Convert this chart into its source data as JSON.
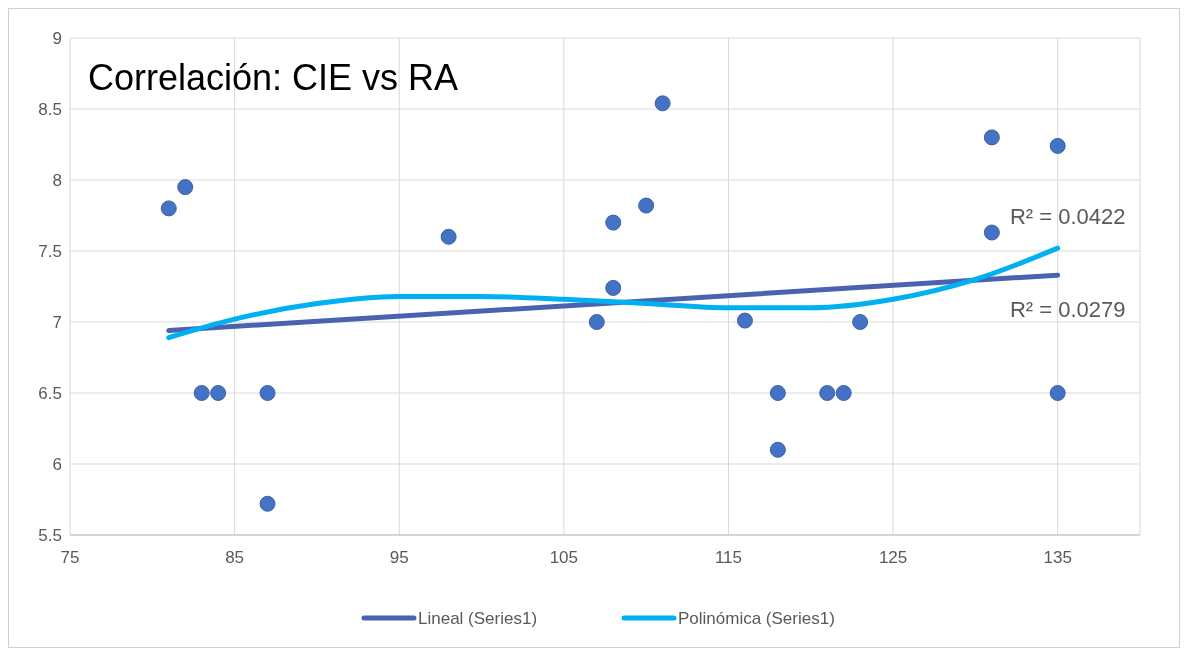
{
  "chart_data": {
    "type": "scatter",
    "title": "Correlación: CIE vs RA",
    "xlim": [
      75,
      140
    ],
    "ylim": [
      5.5,
      9
    ],
    "xticks": [
      75,
      85,
      95,
      105,
      115,
      125,
      135
    ],
    "yticks": [
      5.5,
      6,
      6.5,
      7,
      7.5,
      8,
      8.5,
      9
    ],
    "grid": true,
    "legend": "bottom",
    "marker": "circle",
    "series": [
      {
        "color": "#4472c4",
        "x": [
          81,
          82,
          83,
          84,
          87,
          87,
          98,
          107,
          108,
          108,
          110,
          111,
          116,
          118,
          118,
          121,
          122,
          123,
          131,
          131,
          135,
          135
        ],
        "values": [
          7.8,
          7.95,
          6.5,
          6.5,
          6.5,
          5.72,
          7.6,
          7.0,
          7.24,
          7.7,
          7.82,
          8.54,
          7.01,
          6.5,
          6.1,
          6.5,
          6.5,
          7.0,
          8.3,
          7.63,
          8.24,
          6.5
        ]
      },
      {
        "type": "line",
        "name": "Lineal (Series1)",
        "color": "#4a62b0",
        "marker": "none",
        "x": [
          81,
          135
        ],
        "values": [
          6.94,
          7.33
        ]
      },
      {
        "type": "line",
        "name": "Polinómica (Series1)",
        "color": "#00b0f0",
        "marker": "none",
        "x": [
          81,
          85,
          90,
          95,
          100,
          105,
          110,
          115,
          120,
          125,
          130,
          135
        ],
        "values": [
          6.89,
          7.02,
          7.13,
          7.18,
          7.18,
          7.16,
          7.13,
          7.1,
          7.1,
          7.16,
          7.3,
          7.52
        ]
      }
    ],
    "annotations": [
      "R² = 0.0422",
      "R² = 0.0279"
    ]
  }
}
